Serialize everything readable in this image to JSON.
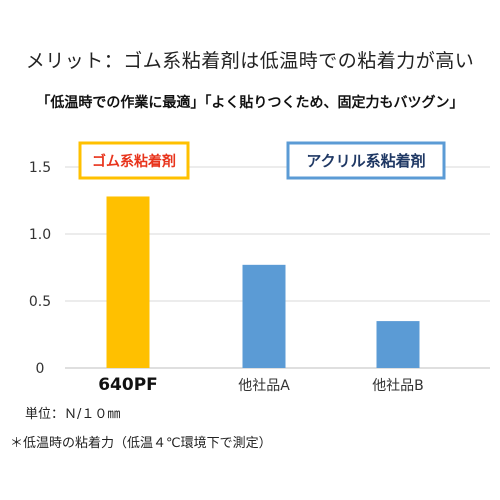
{
  "header": {
    "title": "メリット：ゴム系粘着剤は低温時での粘着力が高い",
    "subtitle": "「低温時での作業に最適」「よく貼りつくため、固定力もバツグン」"
  },
  "chart_data": {
    "type": "bar",
    "categories": [
      "640PF",
      "他社品A",
      "他社品B"
    ],
    "values": [
      1.28,
      0.77,
      0.35
    ],
    "bar_colors": [
      "#FFC000",
      "#5B9BD5",
      "#5B9BD5"
    ],
    "ylim": [
      0,
      1.7
    ],
    "yticks": [
      0,
      0.5,
      1.0,
      1.5
    ],
    "ytick_labels": [
      "0",
      "0.5",
      "1.0",
      "1.5"
    ],
    "grid": true,
    "legend": [
      {
        "name": "ゴム系粘着剤",
        "text_color": "#E8341C",
        "border_color": "#FFC000",
        "placement": "top-left"
      },
      {
        "name": "アクリル系粘着剤",
        "text_color": "#1F3864",
        "border_color": "#5B9BD5",
        "placement": "top-right"
      }
    ],
    "xlabel": "",
    "ylabel": ""
  },
  "footer": {
    "unit": "単位：Ｎ/１０㎜",
    "note": "＊低温時の粘着力（低温４℃環境下で測定）"
  }
}
